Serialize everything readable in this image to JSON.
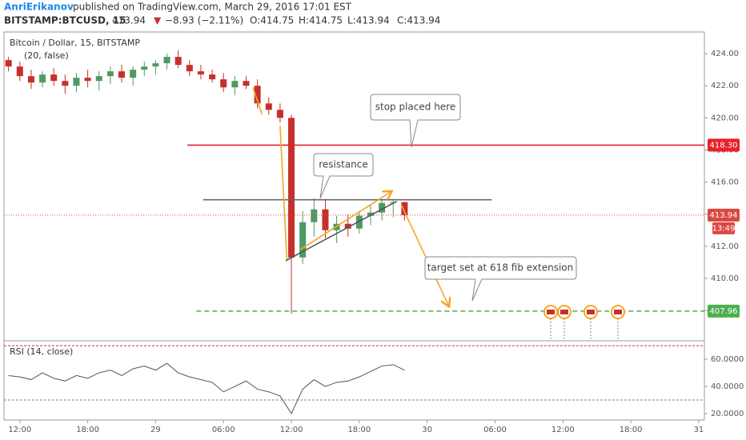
{
  "header": {
    "user": "AnriErikanov",
    "published": "published on TradingView.com, March 29, 2016 17:01 EST",
    "symbol": "BITSTAMP:BTCUSD, 15",
    "price": "413.94",
    "arrow": "▼",
    "change": "−8.93 (−2.11%)",
    "open": "O:414.75",
    "high": "H:414.75",
    "low": "L:413.94",
    "close": "C:413.94"
  },
  "chart_data": [
    {
      "type": "candlestick",
      "title": "Bitcoin / Dollar, 15, BITSTAMP",
      "subtitle": "(20, false)",
      "x": [
        -1,
        0,
        1,
        2,
        3,
        4,
        5,
        6,
        7,
        8,
        9,
        10,
        11,
        12,
        13,
        14,
        15,
        16,
        17,
        18,
        19,
        20,
        21,
        22,
        23,
        24,
        25,
        26,
        27,
        28,
        29,
        30,
        31,
        32,
        33,
        34
      ],
      "open": [
        423.6,
        423.2,
        422.6,
        422.2,
        422.7,
        422.3,
        422.0,
        422.5,
        422.3,
        422.6,
        422.9,
        422.5,
        423.0,
        423.2,
        423.4,
        423.8,
        423.3,
        422.9,
        422.7,
        422.4,
        421.9,
        422.3,
        422.0,
        420.9,
        420.5,
        420.0,
        411.3,
        413.5,
        414.3,
        413.0,
        413.4,
        413.1,
        413.9,
        414.1,
        414.7,
        414.75
      ],
      "high": [
        423.8,
        423.5,
        423.0,
        422.9,
        423.1,
        422.7,
        422.8,
        423.0,
        422.9,
        423.2,
        423.3,
        423.2,
        423.5,
        423.6,
        424.0,
        424.2,
        423.6,
        423.3,
        423.0,
        422.8,
        422.6,
        422.6,
        422.4,
        421.3,
        420.9,
        420.2,
        414.2,
        415.0,
        414.9,
        413.9,
        414.0,
        414.2,
        414.6,
        414.9,
        414.9,
        414.75
      ],
      "low": [
        422.9,
        422.3,
        421.8,
        421.9,
        422.0,
        421.5,
        421.6,
        421.9,
        421.7,
        422.1,
        422.2,
        422.0,
        422.6,
        422.7,
        423.0,
        423.1,
        422.6,
        422.4,
        422.2,
        421.6,
        421.4,
        421.8,
        420.6,
        420.2,
        419.7,
        407.8,
        410.9,
        412.6,
        412.5,
        412.2,
        412.6,
        412.8,
        413.3,
        413.6,
        413.8,
        413.6
      ],
      "close": [
        423.2,
        422.6,
        422.2,
        422.7,
        422.3,
        422.0,
        422.5,
        422.3,
        422.6,
        422.9,
        422.5,
        423.0,
        423.2,
        423.4,
        423.8,
        423.3,
        422.9,
        422.7,
        422.4,
        421.9,
        422.3,
        422.0,
        420.9,
        420.5,
        420.0,
        411.3,
        413.5,
        414.3,
        413.0,
        413.4,
        413.1,
        413.9,
        414.1,
        414.7,
        414.75,
        413.94
      ],
      "up_color": "#4f9a63",
      "down_color": "#c6302c",
      "xlim": [
        -1.4,
        60.5
      ],
      "ylim": [
        406.16,
        425.25
      ],
      "xticks": [
        {
          "value": 0,
          "label": "12:00"
        },
        {
          "value": 6,
          "label": "18:00"
        },
        {
          "value": 12,
          "label": "29"
        },
        {
          "value": 18,
          "label": "06:00"
        },
        {
          "value": 24,
          "label": "12:00"
        },
        {
          "value": 30,
          "label": "18:00"
        },
        {
          "value": 36,
          "label": "30"
        },
        {
          "value": 42,
          "label": "06:00"
        },
        {
          "value": 48,
          "label": "12:00"
        },
        {
          "value": 54,
          "label": "18:00"
        },
        {
          "value": 60,
          "label": "31"
        }
      ],
      "yticks": [
        {
          "value": 408,
          "label": "408.00"
        },
        {
          "value": 410,
          "label": "410.00"
        },
        {
          "value": 412,
          "label": "412.00"
        },
        {
          "value": 414,
          "label": "414.00"
        },
        {
          "value": 416,
          "label": "416.00"
        },
        {
          "value": 418,
          "label": "418.00"
        },
        {
          "value": 420,
          "label": "420.00"
        },
        {
          "value": 422,
          "label": "422.00"
        },
        {
          "value": 424,
          "label": "424.00"
        }
      ],
      "price_labels": [
        {
          "value": 418.3,
          "label": "418.30",
          "color": "#e8202a"
        },
        {
          "value": 413.94,
          "label": "413.94",
          "color": "#d9493f"
        },
        {
          "value": 407.96,
          "label": "407.96",
          "color": "#4caf50"
        }
      ],
      "countdown": "13:49",
      "lines": [
        {
          "points": [
            [
              14.8,
              418.3
            ],
            [
              60.5,
              418.3
            ]
          ],
          "color": "#e8202a",
          "style": "solid",
          "arrow": false
        },
        {
          "points": [
            [
              15.6,
              407.96
            ],
            [
              60.5,
              407.96
            ]
          ],
          "color": "#4caf50",
          "style": "dashed",
          "arrow": false
        },
        {
          "points": [
            [
              -1.4,
              413.94
            ],
            [
              60.5,
              413.94
            ]
          ],
          "color": "#d9493f",
          "style": "dotted",
          "arrow": false
        },
        {
          "points": [
            [
              16.2,
              414.9
            ],
            [
              41.7,
              414.9
            ]
          ],
          "color": "#666666",
          "style": "solid",
          "arrow": false
        },
        {
          "points": [
            [
              23.5,
              411.1
            ],
            [
              33.3,
              414.8
            ]
          ],
          "color": "#555555",
          "style": "solid",
          "arrow": false
        },
        {
          "points": [
            [
              20.6,
              421.9
            ],
            [
              21.4,
              420.2
            ]
          ],
          "color": "#f5a623",
          "style": "solid",
          "arrow": false
        },
        {
          "points": [
            [
              23.0,
              419.5
            ],
            [
              23.6,
              411.2
            ]
          ],
          "color": "#f5a623",
          "style": "solid",
          "arrow": false
        },
        {
          "points": [
            [
              24.8,
              411.8
            ],
            [
              32.8,
              415.4
            ]
          ],
          "color": "#f5a623",
          "style": "solid",
          "arrow": true
        },
        {
          "points": [
            [
              33.7,
              414.6
            ],
            [
              37.9,
              408.3
            ]
          ],
          "color": "#f5a623",
          "style": "solid",
          "arrow": true
        }
      ],
      "annotations": [
        "stop placed here",
        "resistance",
        "target set at 618 fib extension"
      ]
    },
    {
      "type": "line",
      "title": "RSI (14, close)",
      "x": [
        -1,
        0,
        1,
        2,
        3,
        4,
        5,
        6,
        7,
        8,
        9,
        10,
        11,
        12,
        13,
        14,
        15,
        16,
        17,
        18,
        19,
        20,
        21,
        22,
        23,
        24,
        25,
        26,
        27,
        28,
        29,
        30,
        31,
        32,
        33,
        34
      ],
      "values": [
        48,
        47,
        45,
        50,
        46,
        44,
        48,
        46,
        50,
        52,
        48,
        53,
        55,
        52,
        57,
        50,
        47,
        45,
        43,
        36,
        40,
        44,
        38,
        36,
        33,
        20,
        38,
        45,
        40,
        43,
        44,
        47,
        51,
        55,
        56,
        52
      ],
      "color": "#555555",
      "xlim": [
        -1.4,
        60.5
      ],
      "ylim": [
        15.3,
        72.4
      ],
      "yticks": [
        {
          "value": 20,
          "label": "20.0000"
        },
        {
          "value": 40,
          "label": "40.0000"
        },
        {
          "value": 60,
          "label": "60.0000"
        }
      ],
      "hlines": [
        {
          "value": 70,
          "color": "#e8202a"
        },
        {
          "value": 30,
          "color": "#4caf50"
        }
      ]
    }
  ]
}
